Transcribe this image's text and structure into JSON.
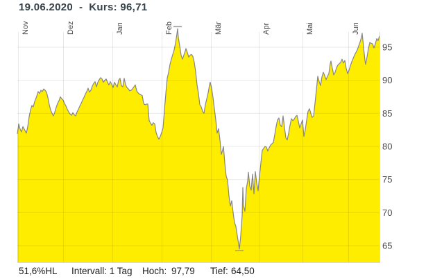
{
  "title": "19.06.2020  -  Kurs: 96,71",
  "footer": {
    "change_hl": "51,6%HL",
    "interval": "Intervall: 1 Tag",
    "high_label": "Hoch:",
    "high_value": "97,79",
    "low_label": "Tief:",
    "low_value": "64,50"
  },
  "chart_data": {
    "type": "area",
    "title": "19.06.2020 - Kurs: 96,71",
    "x_axis": {
      "unit": "trading days, Nov 2019 - 19 Jun 2020",
      "labels": [
        "Nov",
        "Dez",
        "Jan",
        "Feb",
        "Mär",
        "Apr",
        "Mai",
        "Jun"
      ],
      "line_t": [
        1,
        66,
        137,
        208,
        279,
        348,
        411,
        477
      ],
      "t_range": [
        0,
        522
      ]
    },
    "y_axis": {
      "side": "right",
      "ticks": [
        65,
        70,
        75,
        80,
        85,
        90,
        95
      ],
      "top_value": 100.6,
      "bottom_value": 62.5
    },
    "grid": true,
    "legend": "none",
    "high": {
      "t": 231,
      "value": 97.79
    },
    "low": {
      "t": 320,
      "value": 64.5
    },
    "last": {
      "date": "19.06.2020",
      "value": 96.71
    },
    "interval": "1 Tag",
    "series": [
      {
        "name": "Kurs",
        "points": [
          [
            0,
            81.9
          ],
          [
            2,
            83.4
          ],
          [
            4,
            82.6
          ],
          [
            6,
            82.2
          ],
          [
            8,
            83.0
          ],
          [
            10,
            82.6
          ],
          [
            13,
            82.0
          ],
          [
            15,
            83.0
          ],
          [
            17,
            84.5
          ],
          [
            19,
            85.5
          ],
          [
            21,
            86.2
          ],
          [
            23,
            86.0
          ],
          [
            25,
            86.8
          ],
          [
            27,
            87.3
          ],
          [
            30,
            88.3
          ],
          [
            32,
            88.0
          ],
          [
            34,
            88.5
          ],
          [
            36,
            88.3
          ],
          [
            38,
            88.7
          ],
          [
            40,
            88.5
          ],
          [
            42,
            88.2
          ],
          [
            44,
            87.4
          ],
          [
            46,
            86.3
          ],
          [
            48,
            85.5
          ],
          [
            50,
            85.0
          ],
          [
            52,
            84.6
          ],
          [
            54,
            85.2
          ],
          [
            56,
            85.9
          ],
          [
            58,
            86.5
          ],
          [
            60,
            86.9
          ],
          [
            62,
            87.5
          ],
          [
            64,
            87.2
          ],
          [
            66,
            87.0
          ],
          [
            68,
            86.5
          ],
          [
            70,
            86.1
          ],
          [
            72,
            85.6
          ],
          [
            74,
            85.2
          ],
          [
            76,
            84.9
          ],
          [
            78,
            84.7
          ],
          [
            80,
            85.1
          ],
          [
            82,
            84.8
          ],
          [
            84,
            84.6
          ],
          [
            86,
            85.2
          ],
          [
            88,
            85.6
          ],
          [
            90,
            86.1
          ],
          [
            92,
            86.5
          ],
          [
            94,
            87.0
          ],
          [
            96,
            87.4
          ],
          [
            98,
            87.9
          ],
          [
            100,
            88.3
          ],
          [
            102,
            88.8
          ],
          [
            104,
            88.2
          ],
          [
            106,
            88.5
          ],
          [
            108,
            89.1
          ],
          [
            110,
            89.5
          ],
          [
            112,
            89.8
          ],
          [
            114,
            89.0
          ],
          [
            116,
            89.7
          ],
          [
            118,
            90.1
          ],
          [
            120,
            90.4
          ],
          [
            122,
            90.2
          ],
          [
            124,
            89.7
          ],
          [
            126,
            90.0
          ],
          [
            128,
            90.2
          ],
          [
            130,
            89.7
          ],
          [
            132,
            89.3
          ],
          [
            134,
            89.8
          ],
          [
            136,
            89.4
          ],
          [
            138,
            88.9
          ],
          [
            140,
            89.7
          ],
          [
            142,
            89.3
          ],
          [
            144,
            89.0
          ],
          [
            146,
            90.0
          ],
          [
            148,
            90.3
          ],
          [
            150,
            89.2
          ],
          [
            152,
            89.0
          ],
          [
            154,
            90.3
          ],
          [
            156,
            89.3
          ],
          [
            158,
            88.9
          ],
          [
            160,
            88.7
          ],
          [
            162,
            88.4
          ],
          [
            164,
            88.5
          ],
          [
            166,
            88.7
          ],
          [
            168,
            89.0
          ],
          [
            170,
            89.3
          ],
          [
            172,
            88.4
          ],
          [
            174,
            88.1
          ],
          [
            176,
            87.9
          ],
          [
            178,
            87.8
          ],
          [
            180,
            87.7
          ],
          [
            182,
            86.5
          ],
          [
            184,
            86.3
          ],
          [
            186,
            86.4
          ],
          [
            188,
            86.4
          ],
          [
            190,
            83.9
          ],
          [
            192,
            83.5
          ],
          [
            194,
            83.2
          ],
          [
            196,
            83.6
          ],
          [
            198,
            83.4
          ],
          [
            200,
            82.1
          ],
          [
            202,
            81.5
          ],
          [
            204,
            81.1
          ],
          [
            206,
            81.5
          ],
          [
            208,
            82.1
          ],
          [
            210,
            82.8
          ],
          [
            212,
            85.5
          ],
          [
            214,
            88.0
          ],
          [
            216,
            90.3
          ],
          [
            218,
            91.2
          ],
          [
            220,
            92.4
          ],
          [
            222,
            93.2
          ],
          [
            224,
            93.9
          ],
          [
            226,
            94.6
          ],
          [
            228,
            95.6
          ],
          [
            230,
            97.0
          ],
          [
            231,
            97.79
          ],
          [
            232,
            96.5
          ],
          [
            234,
            95.2
          ],
          [
            236,
            93.8
          ],
          [
            238,
            93.2
          ],
          [
            240,
            93.8
          ],
          [
            242,
            94.4
          ],
          [
            243,
            94.8
          ],
          [
            245,
            94.2
          ],
          [
            247,
            93.5
          ],
          [
            249,
            93.8
          ],
          [
            251,
            93.9
          ],
          [
            253,
            93.6
          ],
          [
            255,
            92.7
          ],
          [
            257,
            91.3
          ],
          [
            259,
            89.3
          ],
          [
            261,
            88.0
          ],
          [
            263,
            86.3
          ],
          [
            265,
            86.0
          ],
          [
            267,
            85.3
          ],
          [
            269,
            85.0
          ],
          [
            271,
            86.3
          ],
          [
            273,
            87.2
          ],
          [
            275,
            88.1
          ],
          [
            277,
            89.3
          ],
          [
            278,
            89.7
          ],
          [
            280,
            88.8
          ],
          [
            282,
            87.4
          ],
          [
            284,
            85.7
          ],
          [
            286,
            84.0
          ],
          [
            288,
            82.0
          ],
          [
            290,
            82.7
          ],
          [
            292,
            81.0
          ],
          [
            294,
            78.8
          ],
          [
            296,
            79.5
          ],
          [
            297,
            80.0
          ],
          [
            299,
            77.5
          ],
          [
            301,
            75.5
          ],
          [
            303,
            74.9
          ],
          [
            305,
            72.5
          ],
          [
            307,
            71.0
          ],
          [
            309,
            71.8
          ],
          [
            311,
            70.0
          ],
          [
            313,
            68.5
          ],
          [
            315,
            67.9
          ],
          [
            317,
            66.5
          ],
          [
            319,
            65.2
          ],
          [
            320,
            64.5
          ],
          [
            322,
            66.5
          ],
          [
            324,
            69.5
          ],
          [
            325,
            73.8
          ],
          [
            326,
            71.0
          ],
          [
            328,
            70.2
          ],
          [
            330,
            73.6
          ],
          [
            332,
            74.8
          ],
          [
            333,
            76.1
          ],
          [
            335,
            74.0
          ],
          [
            337,
            73.4
          ],
          [
            339,
            75.8
          ],
          [
            341,
            72.8
          ],
          [
            343,
            76.2
          ],
          [
            345,
            74.5
          ],
          [
            347,
            73.3
          ],
          [
            349,
            75.5
          ],
          [
            351,
            77.5
          ],
          [
            353,
            79.4
          ],
          [
            355,
            79.7
          ],
          [
            357,
            80.0
          ],
          [
            359,
            79.9
          ],
          [
            361,
            79.3
          ],
          [
            363,
            79.8
          ],
          [
            365,
            80.2
          ],
          [
            367,
            80.4
          ],
          [
            369,
            80.6
          ],
          [
            371,
            81.8
          ],
          [
            373,
            83.0
          ],
          [
            375,
            84.0
          ],
          [
            377,
            84.3
          ],
          [
            379,
            83.2
          ],
          [
            381,
            83.0
          ],
          [
            383,
            84.6
          ],
          [
            385,
            82.9
          ],
          [
            387,
            81.3
          ],
          [
            389,
            81.0
          ],
          [
            391,
            82.0
          ],
          [
            393,
            83.2
          ],
          [
            395,
            84.2
          ],
          [
            397,
            83.9
          ],
          [
            399,
            84.1
          ],
          [
            401,
            84.5
          ],
          [
            403,
            84.7
          ],
          [
            405,
            83.8
          ],
          [
            407,
            82.8
          ],
          [
            409,
            83.4
          ],
          [
            411,
            84.0
          ],
          [
            413,
            81.5
          ],
          [
            415,
            82.5
          ],
          [
            417,
            84.0
          ],
          [
            419,
            85.3
          ],
          [
            421,
            85.7
          ],
          [
            423,
            85.0
          ],
          [
            425,
            84.4
          ],
          [
            427,
            84.6
          ],
          [
            429,
            86.5
          ],
          [
            431,
            88.5
          ],
          [
            433,
            90.6
          ],
          [
            435,
            89.8
          ],
          [
            437,
            89.2
          ],
          [
            439,
            90.5
          ],
          [
            441,
            91.2
          ],
          [
            443,
            90.7
          ],
          [
            445,
            90.1
          ],
          [
            447,
            90.6
          ],
          [
            449,
            91.0
          ],
          [
            451,
            92.5
          ],
          [
            452,
            92.9
          ],
          [
            454,
            91.8
          ],
          [
            456,
            90.8
          ],
          [
            458,
            91.2
          ],
          [
            460,
            91.9
          ],
          [
            462,
            92.3
          ],
          [
            464,
            92.5
          ],
          [
            466,
            92.7
          ],
          [
            468,
            93.2
          ],
          [
            470,
            92.6
          ],
          [
            472,
            93.0
          ],
          [
            474,
            91.8
          ],
          [
            476,
            91.0
          ],
          [
            478,
            91.5
          ],
          [
            480,
            92.2
          ],
          [
            482,
            92.8
          ],
          [
            484,
            93.3
          ],
          [
            486,
            93.8
          ],
          [
            488,
            94.2
          ],
          [
            490,
            94.6
          ],
          [
            492,
            95.2
          ],
          [
            494,
            95.8
          ],
          [
            496,
            96.5
          ],
          [
            497,
            97.1
          ],
          [
            499,
            95.0
          ],
          [
            501,
            93.0
          ],
          [
            502,
            92.4
          ],
          [
            504,
            93.5
          ],
          [
            506,
            94.8
          ],
          [
            508,
            95.7
          ],
          [
            510,
            95.6
          ],
          [
            512,
            95.5
          ],
          [
            514,
            94.9
          ],
          [
            516,
            95.5
          ],
          [
            518,
            96.3
          ],
          [
            520,
            96.0
          ],
          [
            522,
            96.71
          ]
        ]
      }
    ],
    "colors": {
      "fill": "#ffed00",
      "line": "#868686",
      "grid": "rgba(0,0,0,0.09)",
      "border": "#d9d9d9",
      "axis_text": "#4a4a4a",
      "title_text": "#37424a",
      "footer_text": "#1c1c1c",
      "marker": "#9a9a9a",
      "background": "#ffffff"
    }
  }
}
